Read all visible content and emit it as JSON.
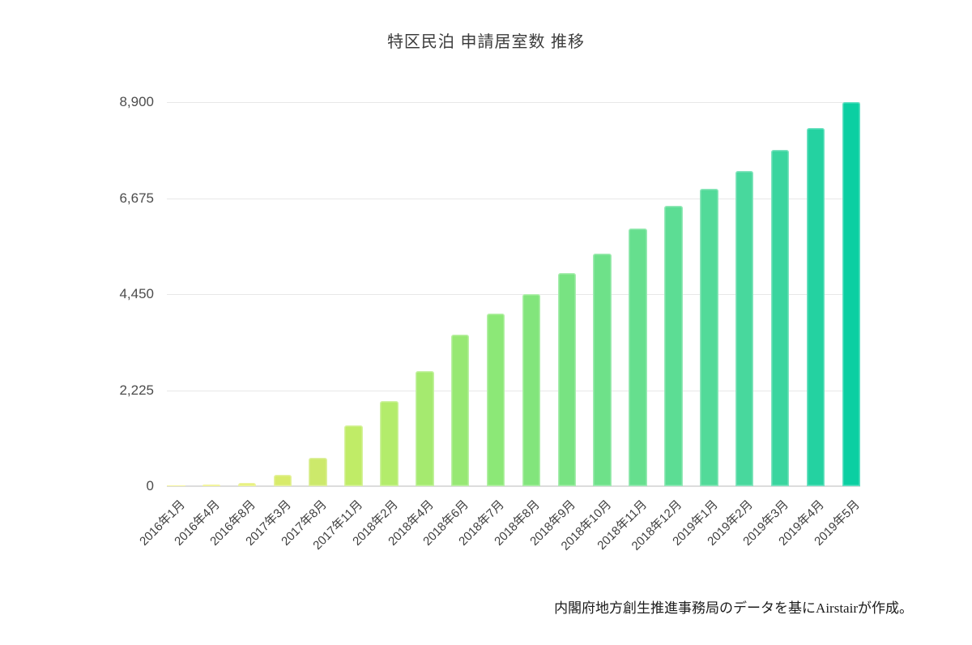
{
  "page": {
    "background": "#ffffff"
  },
  "chart_data": {
    "type": "bar",
    "title": "特区民泊 申請居室数 推移",
    "xlabel": "",
    "ylabel": "",
    "ylim": [
      0,
      8900
    ],
    "grid": "horizontal",
    "legend": "none",
    "yticks": [
      {
        "value": 0,
        "label": "0"
      },
      {
        "value": 2225,
        "label": "2,225"
      },
      {
        "value": 4450,
        "label": "4,450"
      },
      {
        "value": 6675,
        "label": "6,675"
      },
      {
        "value": 8900,
        "label": "8,900"
      }
    ],
    "categories": [
      "2016年1月",
      "2016年4月",
      "2016年8月",
      "2017年3月",
      "2017年8月",
      "2017年11月",
      "2018年2月",
      "2018年4月",
      "2018年6月",
      "2018年7月",
      "2018年8月",
      "2018年9月",
      "2018年10月",
      "2018年11月",
      "2018年12月",
      "2019年1月",
      "2019年2月",
      "2019年3月",
      "2019年4月",
      "2019年5月"
    ],
    "values": [
      10,
      30,
      70,
      260,
      660,
      1400,
      1980,
      2670,
      3510,
      4000,
      4450,
      4940,
      5380,
      5970,
      6490,
      6900,
      7300,
      7800,
      8300,
      8900
    ],
    "bar_colors": [
      "#f2f069",
      "#ecef69",
      "#e4ee69",
      "#d8eb6a",
      "#cce96b",
      "#c0ec67",
      "#b3ec6b",
      "#a5ea6f",
      "#97e873",
      "#8ce877",
      "#82e57c",
      "#78e382",
      "#6ee189",
      "#66df8e",
      "#5cdd94",
      "#52da99",
      "#48d89d",
      "#3ad59f",
      "#24d2a1",
      "#0bcfa2"
    ],
    "source_note": "内閣府地方創生推進事務局のデータを基にAirstairが作成。"
  },
  "colors": {
    "gridline": "#e8e8e8",
    "baseline": "#dcdcdc",
    "title_text": "#3c3c3c",
    "ytick_text": "#4c4c4c",
    "xlabel_text": "#3e3e3e",
    "source_text": "#1c1c1c"
  }
}
